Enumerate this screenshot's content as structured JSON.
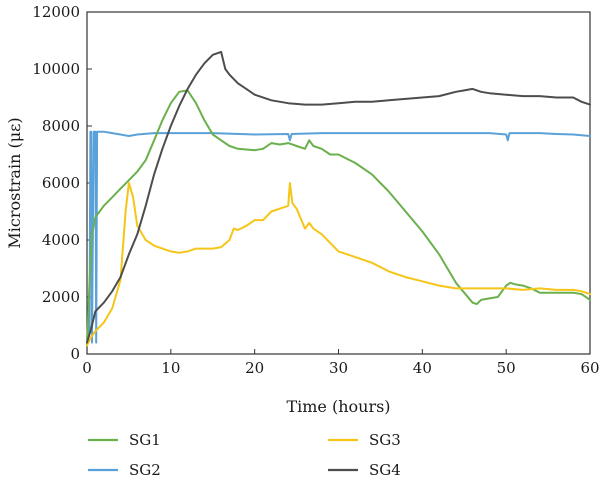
{
  "chart_data": {
    "type": "line",
    "xlabel": "Time (hours)",
    "ylabel": "Microstrain (με)",
    "xlim": [
      0,
      60
    ],
    "ylim": [
      0,
      12000
    ],
    "x_ticks": [
      "0",
      "10",
      "20",
      "30",
      "40",
      "50",
      "60"
    ],
    "y_ticks": [
      "0",
      "2000",
      "4000",
      "6000",
      "8000",
      "10000",
      "12000"
    ],
    "grid": false,
    "legend_position": "bottom",
    "series": [
      {
        "name": "SG1",
        "color": "#6ab04c",
        "points": [
          [
            0,
            300
          ],
          [
            0.3,
            2500
          ],
          [
            0.6,
            4200
          ],
          [
            1,
            4800
          ],
          [
            2,
            5200
          ],
          [
            3,
            5500
          ],
          [
            4,
            5800
          ],
          [
            5,
            6100
          ],
          [
            6,
            6400
          ],
          [
            7,
            6800
          ],
          [
            8,
            7500
          ],
          [
            9,
            8200
          ],
          [
            10,
            8800
          ],
          [
            11,
            9200
          ],
          [
            12,
            9250
          ],
          [
            13,
            8800
          ],
          [
            14,
            8200
          ],
          [
            15,
            7700
          ],
          [
            16,
            7500
          ],
          [
            17,
            7300
          ],
          [
            18,
            7200
          ],
          [
            20,
            7150
          ],
          [
            21,
            7200
          ],
          [
            22,
            7400
          ],
          [
            23,
            7350
          ],
          [
            24,
            7400
          ],
          [
            25,
            7300
          ],
          [
            26,
            7200
          ],
          [
            26.5,
            7500
          ],
          [
            27,
            7300
          ],
          [
            28,
            7200
          ],
          [
            29,
            7000
          ],
          [
            30,
            7000
          ],
          [
            32,
            6700
          ],
          [
            34,
            6300
          ],
          [
            36,
            5700
          ],
          [
            38,
            5000
          ],
          [
            40,
            4300
          ],
          [
            42,
            3500
          ],
          [
            44,
            2500
          ],
          [
            46,
            1800
          ],
          [
            46.5,
            1750
          ],
          [
            47,
            1900
          ],
          [
            48,
            1950
          ],
          [
            49,
            2000
          ],
          [
            50,
            2400
          ],
          [
            50.5,
            2500
          ],
          [
            51,
            2450
          ],
          [
            52,
            2400
          ],
          [
            53,
            2300
          ],
          [
            54,
            2150
          ],
          [
            56,
            2150
          ],
          [
            58,
            2150
          ],
          [
            59,
            2100
          ],
          [
            60,
            1900
          ]
        ]
      },
      {
        "name": "SG2",
        "color": "#5aa1d9",
        "points": [
          [
            0,
            600
          ],
          [
            0.3,
            800
          ],
          [
            0.4,
            7800
          ],
          [
            0.5,
            7800
          ],
          [
            0.6,
            400
          ],
          [
            0.8,
            7800
          ],
          [
            1.0,
            7800
          ],
          [
            1.1,
            400
          ],
          [
            1.2,
            7800
          ],
          [
            2,
            7800
          ],
          [
            3,
            7750
          ],
          [
            4,
            7700
          ],
          [
            5,
            7650
          ],
          [
            6,
            7700
          ],
          [
            8,
            7750
          ],
          [
            10,
            7750
          ],
          [
            12,
            7750
          ],
          [
            15,
            7750
          ],
          [
            20,
            7700
          ],
          [
            24,
            7720
          ],
          [
            24.2,
            7500
          ],
          [
            24.4,
            7720
          ],
          [
            28,
            7750
          ],
          [
            32,
            7750
          ],
          [
            36,
            7750
          ],
          [
            40,
            7750
          ],
          [
            44,
            7750
          ],
          [
            48,
            7750
          ],
          [
            50,
            7700
          ],
          [
            50.2,
            7500
          ],
          [
            50.4,
            7750
          ],
          [
            54,
            7750
          ],
          [
            56,
            7720
          ],
          [
            58,
            7700
          ],
          [
            60,
            7650
          ]
        ]
      },
      {
        "name": "SG3",
        "color": "#f5c518",
        "points": [
          [
            0,
            300
          ],
          [
            0.5,
            600
          ],
          [
            1,
            800
          ],
          [
            2,
            1100
          ],
          [
            3,
            1600
          ],
          [
            4,
            2600
          ],
          [
            4.6,
            5000
          ],
          [
            5,
            6000
          ],
          [
            5.5,
            5500
          ],
          [
            6,
            4500
          ],
          [
            7,
            4000
          ],
          [
            8,
            3800
          ],
          [
            9,
            3700
          ],
          [
            10,
            3600
          ],
          [
            11,
            3550
          ],
          [
            12,
            3600
          ],
          [
            13,
            3700
          ],
          [
            15,
            3700
          ],
          [
            16,
            3750
          ],
          [
            17,
            4000
          ],
          [
            17.5,
            4400
          ],
          [
            18,
            4350
          ],
          [
            19,
            4500
          ],
          [
            20,
            4700
          ],
          [
            21,
            4700
          ],
          [
            22,
            5000
          ],
          [
            23,
            5100
          ],
          [
            24,
            5200
          ],
          [
            24.2,
            6000
          ],
          [
            24.5,
            5300
          ],
          [
            25,
            5100
          ],
          [
            26,
            4400
          ],
          [
            26.5,
            4600
          ],
          [
            27,
            4400
          ],
          [
            28,
            4200
          ],
          [
            29,
            3900
          ],
          [
            30,
            3600
          ],
          [
            32,
            3400
          ],
          [
            34,
            3200
          ],
          [
            36,
            2900
          ],
          [
            38,
            2700
          ],
          [
            40,
            2550
          ],
          [
            42,
            2400
          ],
          [
            44,
            2300
          ],
          [
            46,
            2300
          ],
          [
            48,
            2300
          ],
          [
            50,
            2300
          ],
          [
            52,
            2250
          ],
          [
            54,
            2300
          ],
          [
            56,
            2250
          ],
          [
            58,
            2250
          ],
          [
            59,
            2200
          ],
          [
            60,
            2100
          ]
        ]
      },
      {
        "name": "SG4",
        "color": "#4d4d4d",
        "points": [
          [
            0,
            400
          ],
          [
            0.5,
            900
          ],
          [
            1,
            1500
          ],
          [
            2,
            1800
          ],
          [
            3,
            2200
          ],
          [
            4,
            2700
          ],
          [
            5,
            3500
          ],
          [
            6,
            4200
          ],
          [
            7,
            5200
          ],
          [
            8,
            6300
          ],
          [
            9,
            7200
          ],
          [
            10,
            8000
          ],
          [
            11,
            8700
          ],
          [
            12,
            9300
          ],
          [
            13,
            9800
          ],
          [
            14,
            10200
          ],
          [
            15,
            10500
          ],
          [
            16,
            10600
          ],
          [
            16.5,
            10000
          ],
          [
            17,
            9800
          ],
          [
            18,
            9500
          ],
          [
            19,
            9300
          ],
          [
            20,
            9100
          ],
          [
            22,
            8900
          ],
          [
            24,
            8800
          ],
          [
            26,
            8750
          ],
          [
            28,
            8750
          ],
          [
            30,
            8800
          ],
          [
            32,
            8850
          ],
          [
            34,
            8850
          ],
          [
            36,
            8900
          ],
          [
            38,
            8950
          ],
          [
            40,
            9000
          ],
          [
            42,
            9050
          ],
          [
            44,
            9200
          ],
          [
            45,
            9250
          ],
          [
            46,
            9300
          ],
          [
            47,
            9200
          ],
          [
            48,
            9150
          ],
          [
            50,
            9100
          ],
          [
            52,
            9050
          ],
          [
            54,
            9050
          ],
          [
            56,
            9000
          ],
          [
            58,
            9000
          ],
          [
            59,
            8850
          ],
          [
            60,
            8750
          ]
        ]
      }
    ]
  }
}
